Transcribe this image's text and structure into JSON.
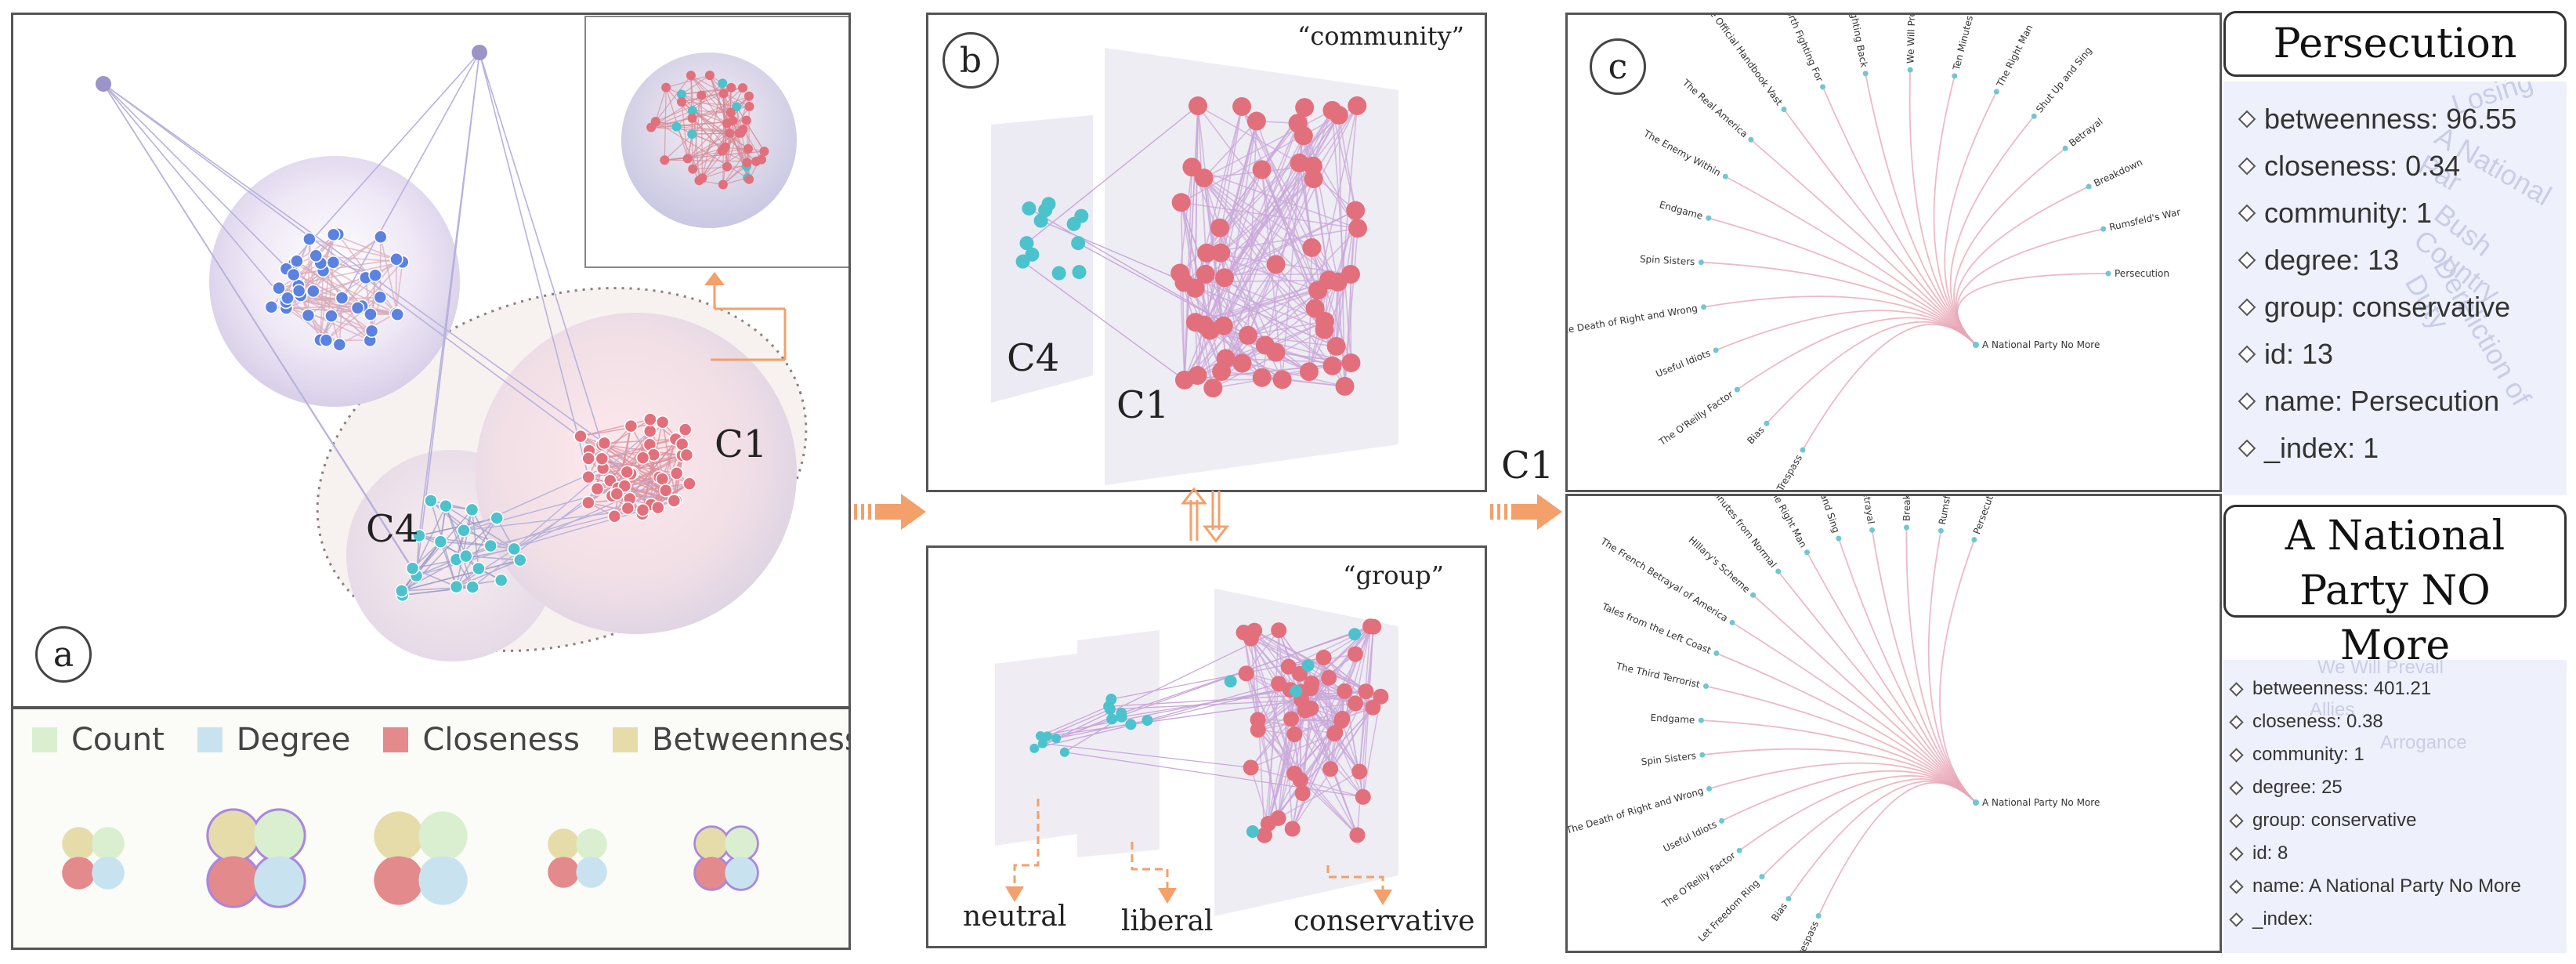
{
  "panel_a": {
    "label": "a",
    "cluster_labels": {
      "c1": "C1",
      "c4": "C4"
    },
    "legend": [
      "Count",
      "Degree",
      "Closeness",
      "Betweenness"
    ],
    "legend_colors": {
      "count": "#d9efcf",
      "degree": "#c8e3ef",
      "closeness": "#e28a8c",
      "betweenness": "#e6dcaa"
    },
    "node_colors": {
      "blue": "#5b82e0",
      "red": "#e2707c",
      "teal": "#4cc3cc",
      "purple": "#9a94c8"
    }
  },
  "panel_b": {
    "label": "b",
    "community_title": "“community”",
    "group_title": "“group”",
    "cluster_labels": {
      "c1": "C1",
      "c4": "C4"
    },
    "group_labels": [
      "neutral",
      "liberal",
      "conservative"
    ]
  },
  "flow_label": "C1",
  "panel_c": {
    "label": "c",
    "top_target": "A National Party No More",
    "top_books": [
      "Three Who Trespass",
      "Bias",
      "The O'Reilly Factor",
      "Useful Idiots",
      "The Death of Right and Wrong",
      "Spin Sisters",
      "Endgame",
      "The Enemy Within",
      "The Real America",
      "The Official Handbook Vast",
      "Things Worth Fighting For",
      "Fighting Back",
      "We Will Prevail",
      "Ten Minutes from Normal",
      "The Right Man",
      "Shut Up and Sing",
      "Betrayal",
      "Breakdown",
      "Rumsfeld's War",
      "Persecution"
    ],
    "bottom_target": "A National Party No More",
    "bottom_books": [
      "Three Who Trespass",
      "Bias",
      "Let Freedom Ring",
      "The O'Reilly Factor",
      "Useful Idiots",
      "The Death of Right and Wrong",
      "Spin Sisters",
      "Endgame",
      "The Third Terrorist",
      "Tales from the Left Coast",
      "The French Betrayal of America",
      "Hillary's Scheme",
      "Ten Minutes from Normal",
      "The Right Man",
      "Shut Up and Sing",
      "Betrayal",
      "Breakdown",
      "Rumsfeld's War",
      "Persecution"
    ]
  },
  "details_top": {
    "title": "Persecution",
    "attributes": [
      "betweenness: 96.55",
      "closeness: 0.34",
      "community: 1",
      "degree: 13",
      "group: conservative",
      "id: 13",
      "name: Persecution",
      "_index: 1"
    ],
    "background_words": [
      "Losing",
      "A National Par",
      "Bush Country",
      "Dereliction of Duty"
    ]
  },
  "details_bottom": {
    "title": "A National Party NO More",
    "attributes": [
      "betweenness: 401.21",
      "closeness: 0.38",
      "community: 1",
      "degree: 25",
      "group: conservative",
      "id: 8",
      "name: A National Party No More",
      "_index:"
    ],
    "background_words": [
      "We Will Prevail",
      "Allies",
      "Arrogance"
    ]
  }
}
